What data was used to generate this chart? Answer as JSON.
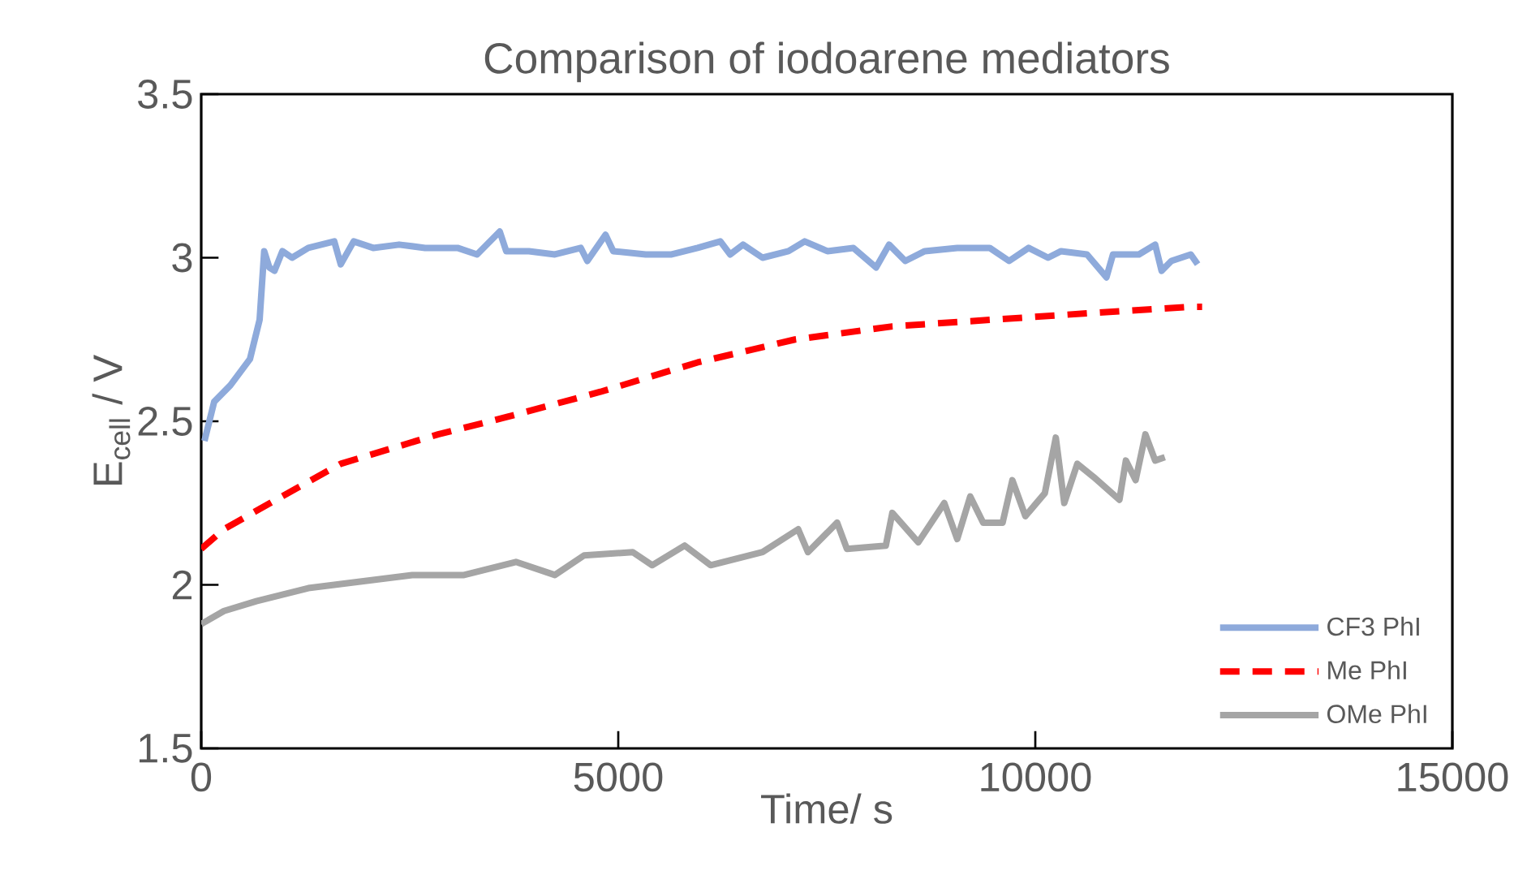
{
  "chart_data": {
    "type": "line",
    "title": "Comparison of iodoarene mediators",
    "xlabel": "Time/ s",
    "ylabel": "E$_{cell}$ / V",
    "xlim": [
      0,
      15000
    ],
    "xticks": [
      0,
      5000,
      10000,
      15000
    ],
    "ylim": [
      1.5,
      3.5
    ],
    "yticks": [
      1.5,
      2,
      2.5,
      3,
      3.5
    ],
    "grid": false,
    "legend": "bottom right",
    "marker": "none",
    "series": [
      {
        "name": "CF3 PhI",
        "color": "#8eaadb",
        "line_style": "solid",
        "x": [
          39,
          156,
          350,
          584,
          700,
          755,
          817,
          879,
          973,
          1089,
          1284,
          1595,
          1673,
          1828,
          2062,
          2373,
          2684,
          3073,
          3307,
          3579,
          3657,
          3929,
          4240,
          4551,
          4629,
          4847,
          4940,
          5329,
          5640,
          5952,
          6224,
          6341,
          6496,
          6730,
          7041,
          7235,
          7508,
          7819,
          8091,
          8247,
          8441,
          8675,
          9064,
          9453,
          9686,
          9920,
          10153,
          10309,
          10620,
          10853,
          10931,
          11242,
          11437,
          11514,
          11631,
          11864,
          11946
        ],
        "values": [
          2.44,
          2.56,
          2.61,
          2.69,
          2.81,
          3.02,
          2.97,
          2.96,
          3.02,
          3.0,
          3.03,
          3.05,
          2.98,
          3.05,
          3.03,
          3.04,
          3.03,
          3.03,
          3.01,
          3.08,
          3.02,
          3.02,
          3.01,
          3.03,
          2.99,
          3.07,
          3.02,
          3.01,
          3.01,
          3.03,
          3.05,
          3.01,
          3.04,
          3.0,
          3.02,
          3.05,
          3.02,
          3.03,
          2.97,
          3.04,
          2.99,
          3.02,
          3.03,
          3.03,
          2.99,
          3.03,
          3.0,
          3.02,
          3.01,
          2.94,
          3.01,
          3.01,
          3.04,
          2.96,
          2.99,
          3.01,
          2.98
        ]
      },
      {
        "name": "Me PhI",
        "color": "#ff0000",
        "line_style": "dashed",
        "x": [
          0,
          272,
          895,
          1673,
          2840,
          3618,
          4785,
          5952,
          7119,
          8286,
          9453,
          10620,
          11864,
          12000
        ],
        "values": [
          2.11,
          2.17,
          2.26,
          2.37,
          2.46,
          2.51,
          2.59,
          2.68,
          2.75,
          2.79,
          2.81,
          2.83,
          2.85,
          2.85
        ]
      },
      {
        "name": "OMe PhI",
        "color": "#a5a5a5",
        "line_style": "solid",
        "x": [
          0,
          272,
          661,
          1284,
          1906,
          2529,
          3151,
          3773,
          4240,
          4590,
          5174,
          5407,
          5796,
          6107,
          6730,
          7157,
          7274,
          7624,
          7741,
          8208,
          8286,
          8597,
          8909,
          9064,
          9220,
          9375,
          9608,
          9725,
          9881,
          10114,
          10246,
          10347,
          10503,
          10698,
          11009,
          11086,
          11203,
          11320,
          11437,
          11553
        ],
        "values": [
          1.88,
          1.92,
          1.95,
          1.99,
          2.01,
          2.03,
          2.03,
          2.07,
          2.03,
          2.09,
          2.1,
          2.06,
          2.12,
          2.06,
          2.1,
          2.17,
          2.1,
          2.19,
          2.11,
          2.12,
          2.22,
          2.13,
          2.25,
          2.14,
          2.27,
          2.19,
          2.19,
          2.32,
          2.21,
          2.28,
          2.45,
          2.25,
          2.37,
          2.33,
          2.26,
          2.38,
          2.32,
          2.46,
          2.38,
          2.39
        ]
      }
    ]
  }
}
